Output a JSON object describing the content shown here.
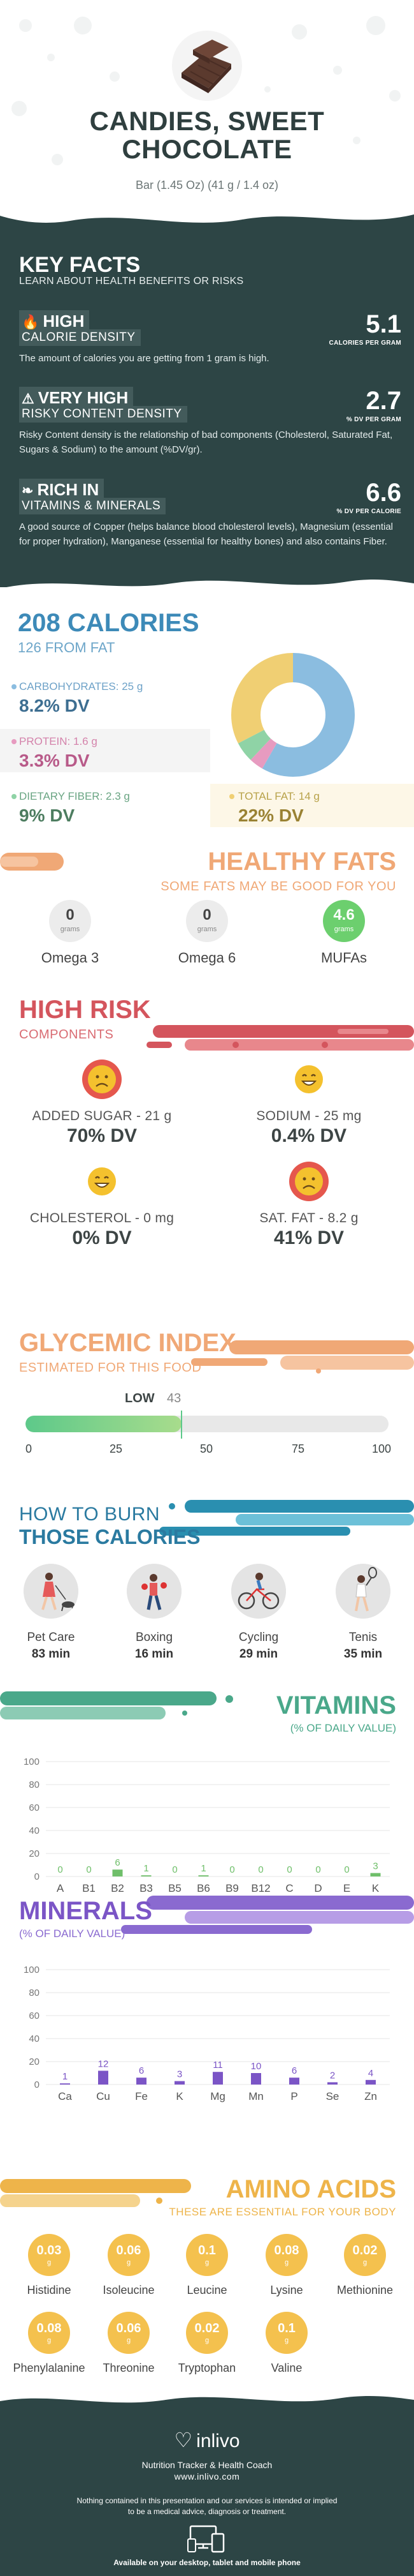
{
  "header": {
    "title_line1": "CANDIES, SWEET",
    "title_line2": "CHOCOLATE",
    "serving": "Bar (1.45 Oz) (41 g / 1.4 oz)"
  },
  "key_facts": {
    "title": "KEY FACTS",
    "subtitle": "LEARN ABOUT HEALTH BENEFITS OR RISKS",
    "items": [
      {
        "level": "HIGH",
        "name": "CALORIE DENSITY",
        "value": "5.1",
        "unit": "CALORIES PER GRAM",
        "icon": "flame-icon",
        "desc": "The amount of calories you are getting from 1 gram is high."
      },
      {
        "level": "VERY HIGH",
        "name": "RISKY CONTENT DENSITY",
        "value": "2.7",
        "unit": "% DV PER GRAM",
        "icon": "warning-icon",
        "desc": "Risky Content density is the relationship of bad components (Cholesterol, Saturated Fat, Sugars & Sodium) to the amount (%DV/gr)."
      },
      {
        "level": "RICH  IN",
        "name": "VITAMINS & MINERALS",
        "value": "6.6",
        "unit": "% DV PER CALORIE",
        "icon": "leaf-icon",
        "desc": "A good source of Copper (helps balance blood cholesterol levels), Magnesium (essential for proper hydration), Manganese (essential for healthy bones) and also contains Fiber."
      }
    ]
  },
  "calories": {
    "title": "208 CALORIES",
    "subtitle": "126 FROM FAT",
    "carbs": {
      "label": "CARBOHYDRATES: 25 g",
      "dv": "8.2% DV",
      "color": "#8bbde0"
    },
    "protein": {
      "label": "PROTEIN: 1.6 g",
      "dv": "3.3% DV",
      "color": "#e79bc0"
    },
    "fiber": {
      "label": "DIETARY FIBER: 2.3 g",
      "dv": "9% DV",
      "color": "#8fd3a6"
    },
    "fat": {
      "label": "TOTAL FAT: 14 g",
      "dv": "22% DV",
      "color": "#f0cf73"
    },
    "pie_grams": [
      25,
      1.6,
      2.3,
      14
    ]
  },
  "healthy_fats": {
    "title": "HEALTHY FATS",
    "subtitle": "SOME FATS MAY BE GOOD FOR YOU",
    "unit": "grams",
    "items": [
      {
        "name": "Omega 3",
        "value": "0"
      },
      {
        "name": "Omega 6",
        "value": "0"
      },
      {
        "name": "MUFAs",
        "value": "4.6"
      }
    ]
  },
  "high_risk": {
    "title": "HIGH RISK",
    "subtitle": "COMPONENTS",
    "items": [
      {
        "label": "ADDED SUGAR - 21 g",
        "dv": "70% DV",
        "mood": "sad"
      },
      {
        "label": "SODIUM - 25 mg",
        "dv": "0.4% DV",
        "mood": "happy"
      },
      {
        "label": "CHOLESTEROL - 0 mg",
        "dv": "0% DV",
        "mood": "happy"
      },
      {
        "label": "SAT. FAT - 8.2 g",
        "dv": "41% DV",
        "mood": "sad"
      }
    ]
  },
  "glycemic": {
    "title": "GLYCEMIC INDEX",
    "subtitle": "ESTIMATED FOR THIS FOOD",
    "level": "LOW",
    "value": "43",
    "ticks": [
      "0",
      "25",
      "50",
      "75",
      "100"
    ]
  },
  "burn": {
    "title1": "HOW TO BURN",
    "title2": "THOSE CALORIES",
    "activities": [
      {
        "name": "Pet Care",
        "minutes": "83 min",
        "icon": "dog-walking-icon"
      },
      {
        "name": "Boxing",
        "minutes": "16 min",
        "icon": "boxing-icon"
      },
      {
        "name": "Cycling",
        "minutes": "29 min",
        "icon": "cycling-icon"
      },
      {
        "name": "Tenis",
        "minutes": "35 min",
        "icon": "tennis-icon"
      }
    ]
  },
  "vitamins": {
    "title": "VITAMINS",
    "subtitle": "(% OF DAILY VALUE)",
    "chart_data": {
      "type": "bar",
      "categories": [
        "A",
        "B1",
        "B2",
        "B3",
        "B5",
        "B6",
        "B9",
        "B12",
        "C",
        "D",
        "E",
        "K"
      ],
      "values": [
        0,
        0,
        6,
        1,
        0,
        1,
        0,
        0,
        0,
        0,
        0,
        3
      ],
      "value_labels": [
        "0",
        "0",
        "6",
        "1",
        "0",
        "1",
        "0",
        "0",
        "0",
        "0",
        "0",
        "3"
      ],
      "yticks": [
        "0",
        "20",
        "40",
        "60",
        "80",
        "100"
      ],
      "ylim": [
        0,
        100
      ],
      "color": "#6fbf6a"
    }
  },
  "minerals": {
    "title": "MINERALS",
    "subtitle": "(% OF DAILY VALUE)",
    "chart_data": {
      "type": "bar",
      "categories": [
        "Ca",
        "Cu",
        "Fe",
        "K",
        "Mg",
        "Mn",
        "P",
        "Se",
        "Zn"
      ],
      "values": [
        1,
        12,
        6,
        3,
        11,
        10,
        6,
        2,
        4
      ],
      "value_labels": [
        "1",
        "12",
        "6",
        "3",
        "11",
        "10",
        "6",
        "2",
        "4"
      ],
      "yticks": [
        "0",
        "20",
        "40",
        "60",
        "80",
        "100"
      ],
      "ylim": [
        0,
        100
      ],
      "color": "#7b55c6"
    }
  },
  "amino": {
    "title": "AMINO ACIDS",
    "subtitle": "THESE ARE ESSENTIAL FOR YOUR BODY",
    "unit": "g",
    "items": [
      {
        "name": "Histidine",
        "value": "0.03"
      },
      {
        "name": "Isoleucine",
        "value": "0.06"
      },
      {
        "name": "Leucine",
        "value": "0.1"
      },
      {
        "name": "Lysine",
        "value": "0.08"
      },
      {
        "name": "Methionine",
        "value": "0.02"
      },
      {
        "name": "Phenylalanine",
        "value": "0.08"
      },
      {
        "name": "Threonine",
        "value": "0.06"
      },
      {
        "name": "Tryptophan",
        "value": "0.02"
      },
      {
        "name": "Valine",
        "value": "0.1"
      }
    ]
  },
  "footer": {
    "brand": "inlivo",
    "tagline": "Nutrition Tracker & Health Coach",
    "url": "www.inlivo.com",
    "disclaimer": "Nothing contained in this presentation and our services is intended or implied to be a medical advice, diagnosis or treatment.",
    "available": "Available on your desktop, tablet and mobile phone"
  }
}
